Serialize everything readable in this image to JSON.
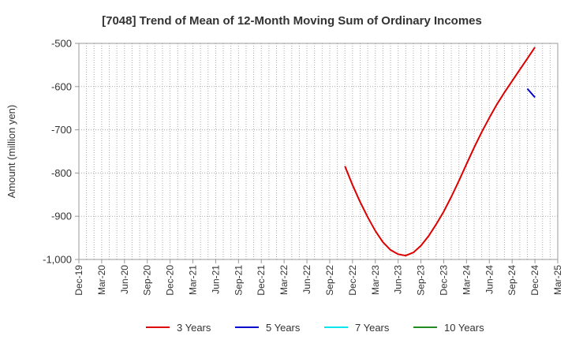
{
  "chart_data": {
    "type": "line",
    "title": "[7048]  Trend of Mean of 12-Month Moving Sum of Ordinary Incomes",
    "ylabel": "Amount (million yen)",
    "xlabel": "",
    "ylim": [
      -1000,
      -500
    ],
    "yticks": [
      -500,
      -600,
      -700,
      -800,
      -900,
      -1000
    ],
    "ytick_labels": [
      "-500",
      "-600",
      "-700",
      "-800",
      "-900",
      "-1,000"
    ],
    "x_start": "Dec-19",
    "x_end": "Mar-25",
    "xtick_labels": [
      "Dec-19",
      "Mar-20",
      "Jun-20",
      "Sep-20",
      "Dec-20",
      "Mar-21",
      "Jun-21",
      "Sep-21",
      "Dec-21",
      "Mar-22",
      "Jun-22",
      "Sep-22",
      "Dec-22",
      "Mar-23",
      "Jun-23",
      "Sep-23",
      "Dec-23",
      "Mar-24",
      "Jun-24",
      "Sep-24",
      "Dec-24",
      "Mar-25"
    ],
    "grid": true,
    "legend_position": "bottom",
    "series": [
      {
        "name": "3 Years",
        "color": "#dd0000",
        "x": [
          "Nov-22",
          "Dec-22",
          "Jan-23",
          "Feb-23",
          "Mar-23",
          "Apr-23",
          "May-23",
          "Jun-23",
          "Jul-23",
          "Aug-23",
          "Sep-23",
          "Oct-23",
          "Nov-23",
          "Dec-23",
          "Jan-24",
          "Feb-24",
          "Mar-24",
          "Apr-24",
          "May-24",
          "Jun-24",
          "Jul-24",
          "Aug-24",
          "Sep-24",
          "Oct-24",
          "Nov-24",
          "Dec-24"
        ],
        "values": [
          -784,
          -828,
          -867,
          -902,
          -934,
          -960,
          -978,
          -988,
          -991,
          -984,
          -968,
          -946,
          -919,
          -889,
          -855,
          -818,
          -779,
          -741,
          -705,
          -672,
          -641,
          -613,
          -587,
          -561,
          -535,
          -509
        ]
      },
      {
        "name": "5 Years",
        "color": "#0000cc",
        "x": [
          "Nov-24",
          "Dec-24"
        ],
        "values": [
          -605,
          -625
        ]
      },
      {
        "name": "7 Years",
        "color": "#00e5ee",
        "x": [],
        "values": []
      },
      {
        "name": "10 Years",
        "color": "#228b22",
        "x": [],
        "values": []
      }
    ]
  }
}
